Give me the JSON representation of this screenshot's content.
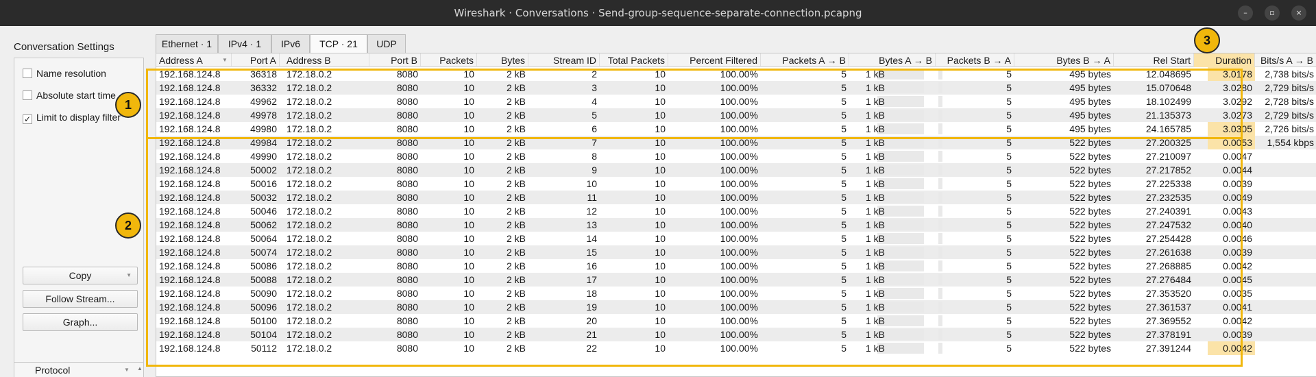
{
  "window": {
    "title": "Wireshark · Conversations · Send-group-sequence-separate-connection.pcapng",
    "minimize_glyph": "–",
    "maximize_glyph": "▫",
    "close_glyph": "×"
  },
  "settings": {
    "title": "Conversation Settings",
    "options": [
      {
        "label": "Name resolution",
        "checked": false,
        "mark": ""
      },
      {
        "label": "Absolute start time",
        "checked": false,
        "mark": ""
      },
      {
        "label": "Limit to display filter",
        "checked": true,
        "mark": "✓"
      }
    ],
    "buttons": {
      "copy": "Copy",
      "follow": "Follow Stream...",
      "graph": "Graph..."
    },
    "protocol_label": "Protocol"
  },
  "tabs": [
    {
      "label": "Ethernet · 1",
      "active": false
    },
    {
      "label": "IPv4 · 1",
      "active": false
    },
    {
      "label": "IPv6",
      "active": false
    },
    {
      "label": "TCP · 21",
      "active": true
    },
    {
      "label": "UDP",
      "active": false
    }
  ],
  "columns": [
    "Address A",
    "Port A",
    "Address B",
    "Port B",
    "Packets",
    "Bytes",
    "Stream ID",
    "Total Packets",
    "Percent Filtered",
    "Packets A → B",
    "Bytes A → B",
    "Packets B → A",
    "Bytes B → A",
    "Rel Start",
    "Duration",
    "Bits/s A → B"
  ],
  "rows": [
    [
      "192.168.124.8",
      "36318",
      "172.18.0.2",
      "8080",
      "10",
      "2 kB",
      "2",
      "10",
      "100.00%",
      "5",
      "1 kB",
      "5",
      "495 bytes",
      "12.048695",
      "3.0178",
      "2,738 bits/s"
    ],
    [
      "192.168.124.8",
      "36332",
      "172.18.0.2",
      "8080",
      "10",
      "2 kB",
      "3",
      "10",
      "100.00%",
      "5",
      "1 kB",
      "5",
      "495 bytes",
      "15.070648",
      "3.0280",
      "2,729 bits/s"
    ],
    [
      "192.168.124.8",
      "49962",
      "172.18.0.2",
      "8080",
      "10",
      "2 kB",
      "4",
      "10",
      "100.00%",
      "5",
      "1 kB",
      "5",
      "495 bytes",
      "18.102499",
      "3.0292",
      "2,728 bits/s"
    ],
    [
      "192.168.124.8",
      "49978",
      "172.18.0.2",
      "8080",
      "10",
      "2 kB",
      "5",
      "10",
      "100.00%",
      "5",
      "1 kB",
      "5",
      "495 bytes",
      "21.135373",
      "3.0273",
      "2,729 bits/s"
    ],
    [
      "192.168.124.8",
      "49980",
      "172.18.0.2",
      "8080",
      "10",
      "2 kB",
      "6",
      "10",
      "100.00%",
      "5",
      "1 kB",
      "5",
      "495 bytes",
      "24.165785",
      "3.0305",
      "2,726 bits/s"
    ],
    [
      "192.168.124.8",
      "49984",
      "172.18.0.2",
      "8080",
      "10",
      "2 kB",
      "7",
      "10",
      "100.00%",
      "5",
      "1 kB",
      "5",
      "522 bytes",
      "27.200325",
      "0.0053",
      "1,554 kbps"
    ],
    [
      "192.168.124.8",
      "49990",
      "172.18.0.2",
      "8080",
      "10",
      "2 kB",
      "8",
      "10",
      "100.00%",
      "5",
      "1 kB",
      "5",
      "522 bytes",
      "27.210097",
      "0.0047",
      ""
    ],
    [
      "192.168.124.8",
      "50002",
      "172.18.0.2",
      "8080",
      "10",
      "2 kB",
      "9",
      "10",
      "100.00%",
      "5",
      "1 kB",
      "5",
      "522 bytes",
      "27.217852",
      "0.0044",
      ""
    ],
    [
      "192.168.124.8",
      "50016",
      "172.18.0.2",
      "8080",
      "10",
      "2 kB",
      "10",
      "10",
      "100.00%",
      "5",
      "1 kB",
      "5",
      "522 bytes",
      "27.225338",
      "0.0039",
      ""
    ],
    [
      "192.168.124.8",
      "50032",
      "172.18.0.2",
      "8080",
      "10",
      "2 kB",
      "11",
      "10",
      "100.00%",
      "5",
      "1 kB",
      "5",
      "522 bytes",
      "27.232535",
      "0.0049",
      ""
    ],
    [
      "192.168.124.8",
      "50046",
      "172.18.0.2",
      "8080",
      "10",
      "2 kB",
      "12",
      "10",
      "100.00%",
      "5",
      "1 kB",
      "5",
      "522 bytes",
      "27.240391",
      "0.0043",
      ""
    ],
    [
      "192.168.124.8",
      "50062",
      "172.18.0.2",
      "8080",
      "10",
      "2 kB",
      "13",
      "10",
      "100.00%",
      "5",
      "1 kB",
      "5",
      "522 bytes",
      "27.247532",
      "0.0040",
      ""
    ],
    [
      "192.168.124.8",
      "50064",
      "172.18.0.2",
      "8080",
      "10",
      "2 kB",
      "14",
      "10",
      "100.00%",
      "5",
      "1 kB",
      "5",
      "522 bytes",
      "27.254428",
      "0.0046",
      ""
    ],
    [
      "192.168.124.8",
      "50074",
      "172.18.0.2",
      "8080",
      "10",
      "2 kB",
      "15",
      "10",
      "100.00%",
      "5",
      "1 kB",
      "5",
      "522 bytes",
      "27.261638",
      "0.0039",
      ""
    ],
    [
      "192.168.124.8",
      "50086",
      "172.18.0.2",
      "8080",
      "10",
      "2 kB",
      "16",
      "10",
      "100.00%",
      "5",
      "1 kB",
      "5",
      "522 bytes",
      "27.268885",
      "0.0042",
      ""
    ],
    [
      "192.168.124.8",
      "50088",
      "172.18.0.2",
      "8080",
      "10",
      "2 kB",
      "17",
      "10",
      "100.00%",
      "5",
      "1 kB",
      "5",
      "522 bytes",
      "27.276484",
      "0.0045",
      ""
    ],
    [
      "192.168.124.8",
      "50090",
      "172.18.0.2",
      "8080",
      "10",
      "2 kB",
      "18",
      "10",
      "100.00%",
      "5",
      "1 kB",
      "5",
      "522 bytes",
      "27.353520",
      "0.0035",
      ""
    ],
    [
      "192.168.124.8",
      "50096",
      "172.18.0.2",
      "8080",
      "10",
      "2 kB",
      "19",
      "10",
      "100.00%",
      "5",
      "1 kB",
      "5",
      "522 bytes",
      "27.361537",
      "0.0041",
      ""
    ],
    [
      "192.168.124.8",
      "50100",
      "172.18.0.2",
      "8080",
      "10",
      "2 kB",
      "20",
      "10",
      "100.00%",
      "5",
      "1 kB",
      "5",
      "522 bytes",
      "27.369552",
      "0.0042",
      ""
    ],
    [
      "192.168.124.8",
      "50104",
      "172.18.0.2",
      "8080",
      "10",
      "2 kB",
      "21",
      "10",
      "100.00%",
      "5",
      "1 kB",
      "5",
      "522 bytes",
      "27.378191",
      "0.0039",
      ""
    ],
    [
      "192.168.124.8",
      "50112",
      "172.18.0.2",
      "8080",
      "10",
      "2 kB",
      "22",
      "10",
      "100.00%",
      "5",
      "1 kB",
      "5",
      "522 bytes",
      "27.391244",
      "0.0042",
      ""
    ]
  ],
  "highlighted_duration_rows": [
    0,
    4,
    5,
    20
  ],
  "callouts": [
    "1",
    "2",
    "3"
  ],
  "colors": {
    "callout": "#f1b70c",
    "duration_highlight": "#fbe3a8",
    "titlebar": "#2b2b2b"
  },
  "icons": {
    "sort_indicator": "chevron-down-icon",
    "checkbox_check": "check-icon"
  }
}
